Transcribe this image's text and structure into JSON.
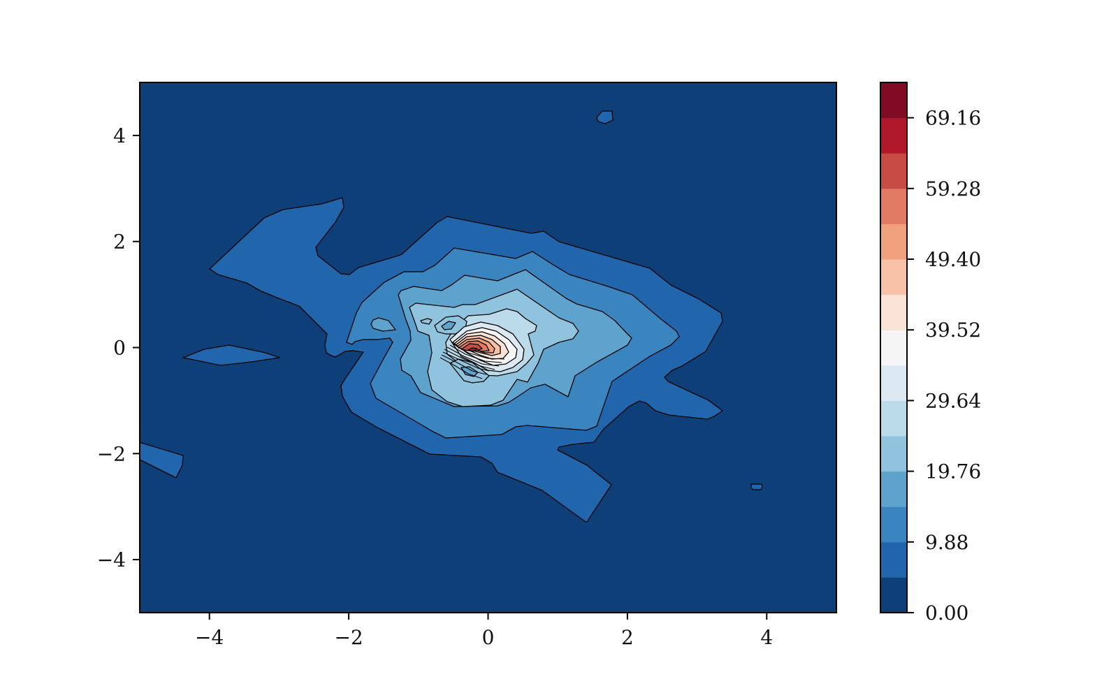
{
  "chart_data": {
    "type": "contourf",
    "title": "",
    "xlabel": "",
    "ylabel": "",
    "xlim": [
      -5,
      5
    ],
    "ylim": [
      -5,
      5
    ],
    "x_ticks": [
      -4,
      -2,
      0,
      2,
      4
    ],
    "x_tick_labels": [
      "−4",
      "−2",
      "0",
      "2",
      "4"
    ],
    "y_ticks": [
      -4,
      -2,
      0,
      2,
      4
    ],
    "y_tick_labels": [
      "−4",
      "−2",
      "0",
      "2",
      "4"
    ],
    "grid": false,
    "peak": {
      "x": -0.1,
      "y": -0.05,
      "value": 64
    },
    "levels": [
      0.0,
      4.94,
      9.88,
      14.82,
      19.76,
      24.7,
      29.64,
      34.58,
      39.52,
      44.46,
      49.4,
      54.34,
      59.28,
      64.22,
      69.16,
      74.1
    ],
    "level_colors": [
      "#0f3f78",
      "#2166ac",
      "#3a84bf",
      "#5ea3cd",
      "#90c4de",
      "#bbdaea",
      "#dde9f2",
      "#f5f5f5",
      "#fbe3d8",
      "#f8c2a8",
      "#f2a17f",
      "#e17963",
      "#c74c45",
      "#b1182b",
      "#810a24"
    ],
    "colorbar": {
      "ticks": [
        0.0,
        9.88,
        19.76,
        29.64,
        39.52,
        49.4,
        59.28,
        69.16
      ],
      "tick_labels": [
        "0.00",
        "9.88",
        "19.76",
        "29.64",
        "39.52",
        "49.40",
        "59.28",
        "69.16"
      ],
      "range": [
        0.0,
        74.1
      ]
    }
  }
}
